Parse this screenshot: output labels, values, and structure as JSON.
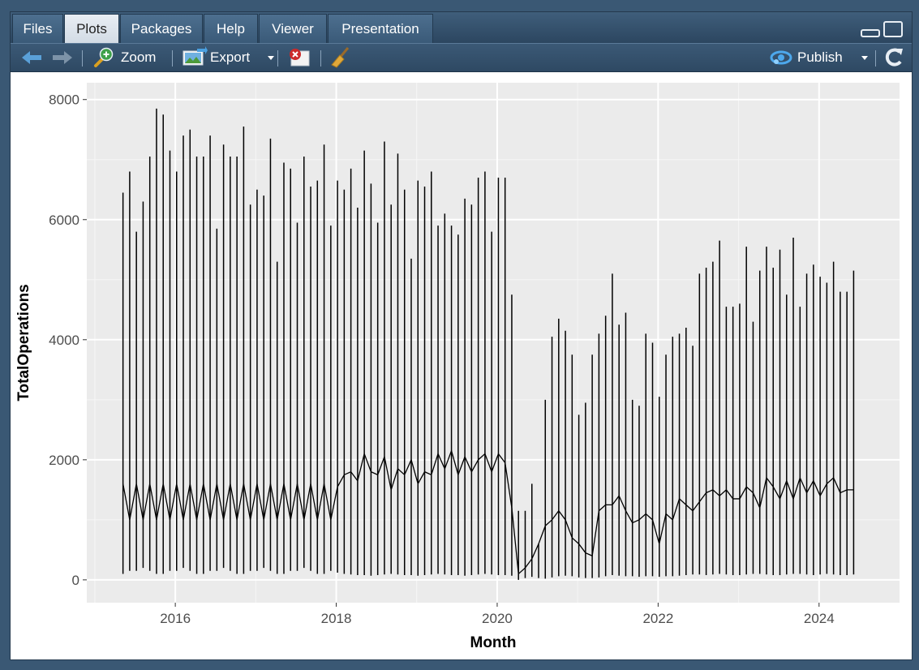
{
  "tabs": [
    {
      "label": "Files"
    },
    {
      "label": "Plots"
    },
    {
      "label": "Packages"
    },
    {
      "label": "Help"
    },
    {
      "label": "Viewer"
    },
    {
      "label": "Presentation"
    }
  ],
  "active_tab": "Plots",
  "toolbar": {
    "zoom_label": "Zoom",
    "export_label": "Export",
    "publish_label": "Publish"
  },
  "chart_data": {
    "type": "line",
    "title": "",
    "xlabel": "Month",
    "ylabel": "TotalOperations",
    "xlim": [
      2014.9,
      2025.0
    ],
    "ylim": [
      -380,
      8280
    ],
    "xticks": [
      2016,
      2018,
      2020,
      2022,
      2024
    ],
    "yticks": [
      0,
      2000,
      4000,
      6000,
      8000
    ],
    "x_start": 2015.35,
    "x_step": 0.0833,
    "series": [
      {
        "name": "TotalOperations (monthly range)",
        "tops": [
          6450,
          6800,
          5800,
          6300,
          7050,
          7850,
          7750,
          7150,
          6800,
          7400,
          7500,
          7050,
          7050,
          7400,
          5850,
          7250,
          7050,
          7050,
          7550,
          6250,
          6500,
          6400,
          7350,
          5300,
          6950,
          6850,
          5950,
          7050,
          6550,
          6650,
          7250,
          5900,
          6650,
          6500,
          6850,
          6200,
          7150,
          6600,
          5950,
          7300,
          6250,
          7100,
          6500,
          5350,
          6650,
          6550,
          6800,
          5900,
          6100,
          5900,
          5750,
          6350,
          6250,
          6700,
          6800,
          5800,
          6700,
          6700,
          4750,
          1150,
          1150,
          1600,
          600,
          3000,
          4050,
          4350,
          4150,
          3750,
          2750,
          2950,
          3750,
          4100,
          4400,
          5100,
          4250,
          4450,
          3000,
          2900,
          4100,
          3950,
          3050,
          3750,
          4050,
          4100,
          4200,
          3900,
          5100,
          5200,
          5300,
          5650,
          4550,
          4550,
          4600,
          5550,
          4300,
          5150,
          5550,
          5200,
          5500,
          4750,
          5700,
          4550,
          5100,
          5250,
          5050,
          4950,
          5300,
          4800,
          4800,
          5150
        ],
        "bottoms": [
          100,
          150,
          150,
          200,
          150,
          100,
          100,
          150,
          150,
          200,
          150,
          100,
          100,
          150,
          150,
          200,
          150,
          100,
          100,
          150,
          150,
          200,
          150,
          100,
          100,
          150,
          150,
          200,
          150,
          100,
          100,
          150,
          120,
          100,
          90,
          80,
          80,
          70,
          80,
          90,
          100,
          90,
          80,
          80,
          70,
          80,
          90,
          100,
          90,
          80,
          80,
          70,
          80,
          90,
          100,
          90,
          80,
          80,
          70,
          0,
          30,
          50,
          30,
          20,
          40,
          60,
          70,
          60,
          40,
          30,
          30,
          40,
          60,
          80,
          70,
          60,
          60,
          50,
          60,
          60,
          50,
          60,
          60,
          70,
          80,
          90,
          90,
          80,
          90,
          100,
          90,
          80,
          80,
          90,
          100,
          100,
          90,
          80,
          80,
          90,
          100,
          100,
          90,
          80,
          90,
          100,
          90,
          80,
          80,
          90
        ]
      },
      {
        "name": "TotalOperations (monthly mean)",
        "values": [
          1600,
          1000,
          1600,
          1000,
          1600,
          1000,
          1600,
          1000,
          1600,
          1000,
          1600,
          1000,
          1600,
          1000,
          1600,
          1000,
          1600,
          1000,
          1600,
          1000,
          1600,
          1000,
          1600,
          1000,
          1600,
          1000,
          1600,
          1000,
          1600,
          1000,
          1600,
          1000,
          1550,
          1750,
          1800,
          1650,
          2100,
          1800,
          1750,
          2050,
          1500,
          1850,
          1750,
          2000,
          1600,
          1800,
          1750,
          2100,
          1850,
          2150,
          1750,
          2050,
          1800,
          2000,
          2100,
          1800,
          2100,
          1950,
          1200,
          100,
          200,
          350,
          600,
          900,
          1000,
          1150,
          1000,
          700,
          600,
          450,
          400,
          1150,
          1250,
          1250,
          1400,
          1150,
          950,
          1000,
          1100,
          1000,
          600,
          1100,
          1000,
          1350,
          1250,
          1150,
          1300,
          1450,
          1500,
          1400,
          1500,
          1350,
          1350,
          1550,
          1450,
          1200,
          1700,
          1550,
          1350,
          1650,
          1350,
          1700,
          1450,
          1650,
          1400,
          1600,
          1700,
          1450,
          1500,
          1500
        ]
      }
    ]
  }
}
